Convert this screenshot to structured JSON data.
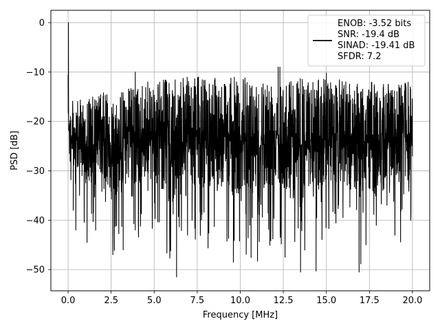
{
  "chart_data": {
    "type": "line",
    "title": "",
    "xlabel": "Frequency [MHz]",
    "ylabel": "PSD [dB]",
    "xlim": [
      -1,
      21
    ],
    "ylim": [
      -54.3,
      2.5
    ],
    "x_ticks": [
      0.0,
      2.5,
      5.0,
      7.5,
      10.0,
      12.5,
      15.0,
      17.5,
      20.0
    ],
    "x_tick_labels": [
      "0.0",
      "2.5",
      "5.0",
      "7.5",
      "10.0",
      "12.5",
      "15.0",
      "17.5",
      "20.0"
    ],
    "y_ticks": [
      0,
      -10,
      -20,
      -30,
      -40,
      -50
    ],
    "y_tick_labels": [
      "0",
      "−10",
      "−20",
      "−30",
      "−40",
      "−50"
    ],
    "grid": true,
    "legend_position": "top-right",
    "legend_entries": [
      "ENOB: -3.52 bits",
      "SNR: -19.4 dB",
      "SINAD: -19.41 dB",
      "SFDR: 7.2"
    ],
    "series_color": "#000000",
    "series": [
      {
        "x": [
          0,
          0.05,
          0.1,
          0.2,
          0.3,
          0.5,
          1.0,
          1.5,
          2.0,
          2.5,
          3.0,
          3.5,
          4.0,
          4.5,
          5.0,
          5.5,
          6.0,
          6.5,
          7.0,
          7.5,
          8.0,
          8.5,
          9.0,
          9.5,
          10.0,
          10.5,
          11.0,
          11.5,
          12.0,
          12.5,
          13.0,
          13.5,
          14.0,
          14.5,
          15.0,
          15.5,
          16.0,
          16.5,
          17.0,
          17.5,
          18.0,
          18.5,
          19.0,
          19.5,
          20.0
        ],
        "y_upper": [
          0,
          -16,
          -17,
          -15,
          -16,
          -16,
          -15,
          -15,
          -14,
          -15,
          -14,
          -13,
          -13,
          -12,
          -12,
          -11,
          -12,
          -11,
          -11,
          -11,
          -11,
          -11,
          -11,
          -11,
          -11,
          -11,
          -11,
          -11,
          -11,
          -11,
          -11,
          -11,
          -12,
          -11,
          -11,
          -12,
          -11,
          -12,
          -11,
          -12,
          -12,
          -12,
          -12,
          -12,
          -12
        ],
        "y_lower": [
          -26,
          -30,
          -35,
          -38,
          -40,
          -36,
          -42,
          -43,
          -40,
          -47,
          -46,
          -43,
          -44,
          -44,
          -42,
          -47,
          -51,
          -45,
          -45,
          -45,
          -47,
          -45,
          -46,
          -48,
          -47,
          -48,
          -47,
          -46,
          -45,
          -46,
          -47,
          -53,
          -44,
          -47,
          -44,
          -43,
          -45,
          -44,
          -50,
          -47,
          -45,
          -43,
          -44,
          -45,
          -45
        ],
        "dips": [
          {
            "x": 0.3,
            "y": -38
          },
          {
            "x": 0.45,
            "y": -42
          },
          {
            "x": 1.1,
            "y": -44.5
          },
          {
            "x": 1.6,
            "y": -42
          },
          {
            "x": 2.6,
            "y": -47
          },
          {
            "x": 3.2,
            "y": -46
          },
          {
            "x": 3.9,
            "y": -42
          },
          {
            "x": 5.9,
            "y": -42
          },
          {
            "x": 6.3,
            "y": -51.5
          },
          {
            "x": 7.2,
            "y": -40
          },
          {
            "x": 9.6,
            "y": -48.5
          },
          {
            "x": 11.0,
            "y": -48.3
          },
          {
            "x": 12.6,
            "y": -47.5
          },
          {
            "x": 13.5,
            "y": -50.5
          },
          {
            "x": 14.4,
            "y": -50.3
          },
          {
            "x": 16.9,
            "y": -50.5
          },
          {
            "x": 17.3,
            "y": -45
          },
          {
            "x": 19.9,
            "y": -40
          }
        ],
        "peaks": [
          {
            "x": 0.02,
            "y": 0
          },
          {
            "x": 3.9,
            "y": -10
          },
          {
            "x": 12.2,
            "y": -9
          },
          {
            "x": 12.3,
            "y": -9
          },
          {
            "x": 15.0,
            "y": -10.2
          }
        ]
      }
    ]
  }
}
